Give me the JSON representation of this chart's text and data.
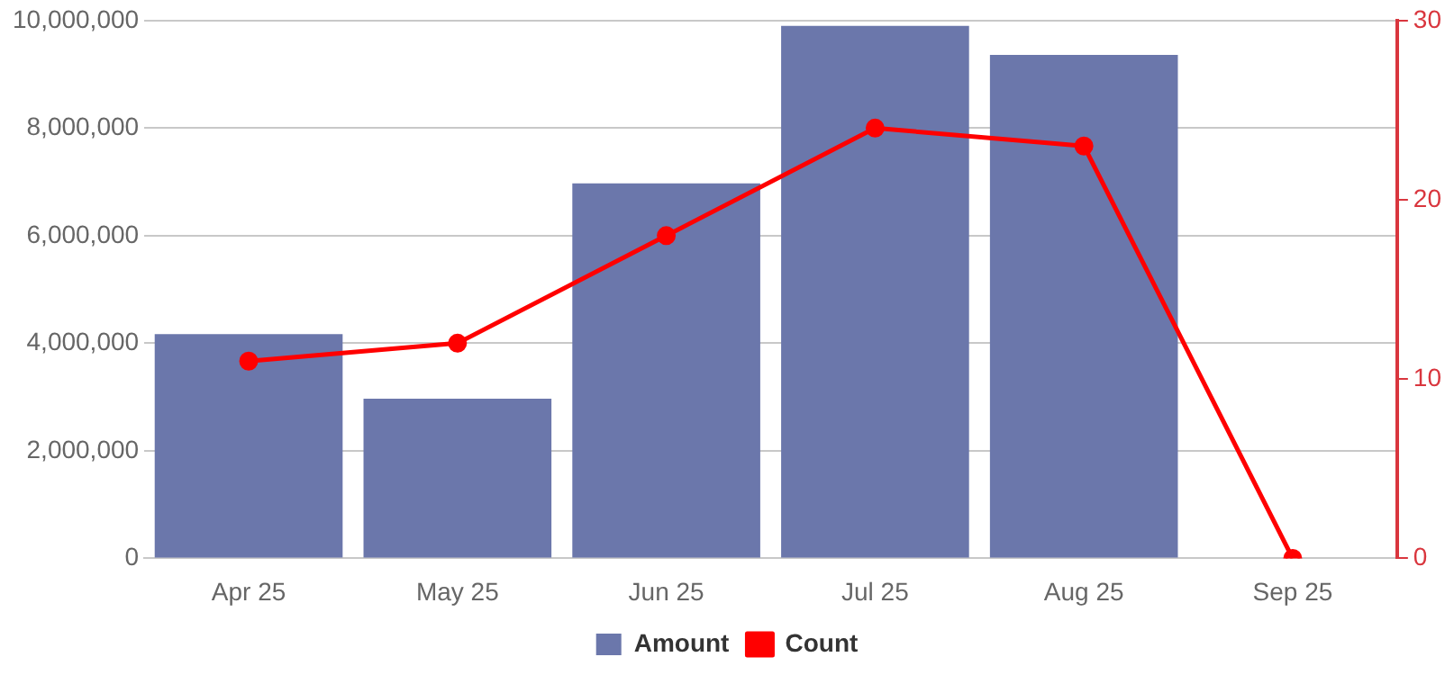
{
  "chart_data": {
    "type": "bar",
    "categories": [
      "Apr 25",
      "May 25",
      "Jun 25",
      "Jul 25",
      "Aug 25",
      "Sep 25"
    ],
    "series": [
      {
        "name": "Amount",
        "color": "#6b77ab",
        "values": [
          4170000,
          2970000,
          6970000,
          9900000,
          9360000,
          0
        ]
      },
      {
        "name": "Count",
        "type": "line",
        "axis": "y2",
        "color": "#ff0000",
        "values": [
          11,
          12,
          18,
          24,
          23,
          0
        ]
      }
    ],
    "ylim": [
      0,
      10000000
    ],
    "yticks": [
      {
        "value": 0,
        "label": "0"
      },
      {
        "value": 2000000,
        "label": "2,000,000"
      },
      {
        "value": 4000000,
        "label": "4,000,000"
      },
      {
        "value": 6000000,
        "label": "6,000,000"
      },
      {
        "value": 8000000,
        "label": "8,000,000"
      },
      {
        "value": 10000000,
        "label": "10,000,000"
      }
    ],
    "y2lim": [
      0,
      30
    ],
    "y2ticks": [
      0,
      10,
      20,
      30
    ],
    "grid": "y",
    "legend": "bottom",
    "marker": "circle",
    "line_style": "solid"
  }
}
